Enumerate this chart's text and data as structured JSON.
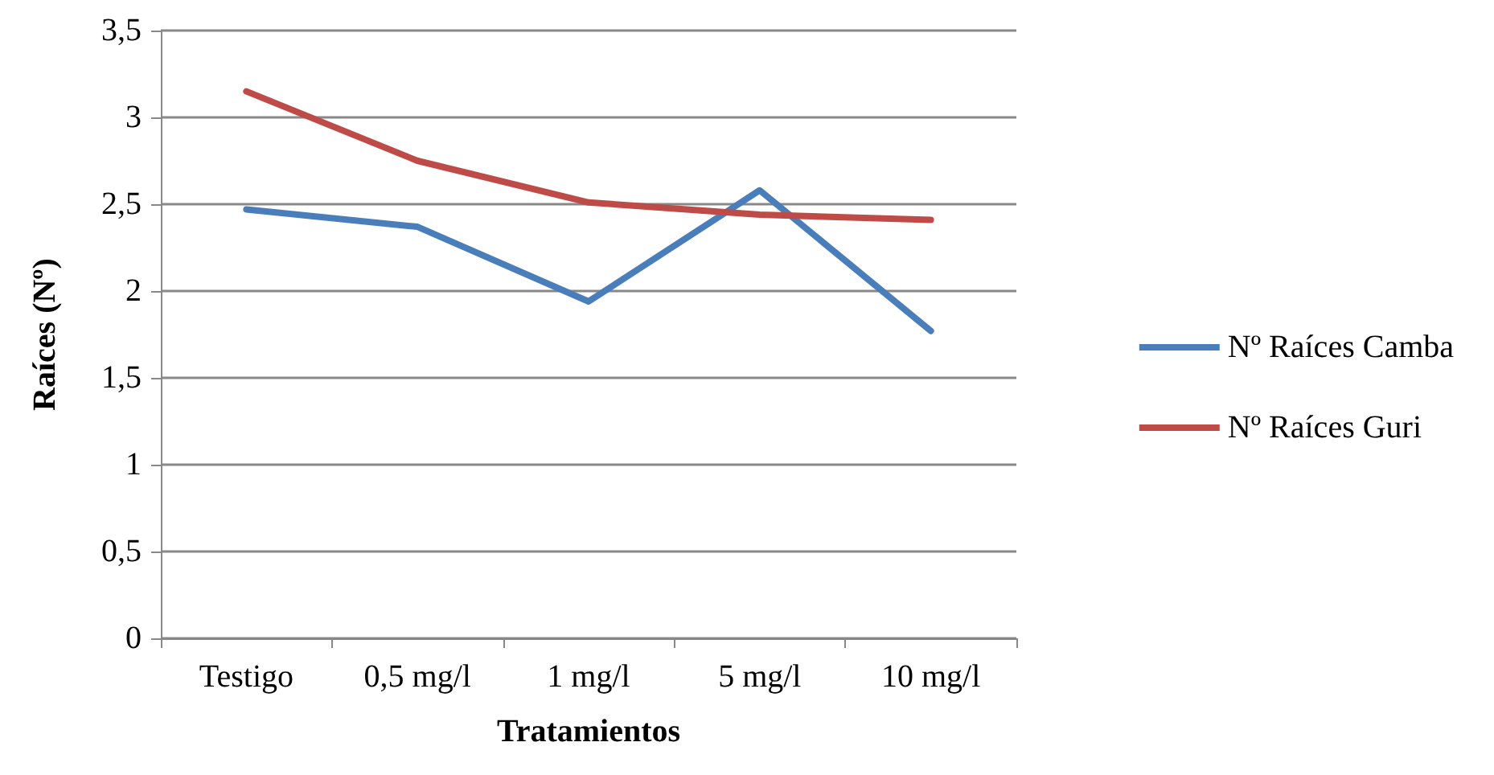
{
  "chart_data": {
    "type": "line",
    "xlabel": "Tratamientos",
    "ylabel": "Raíces (Nº)",
    "categories": [
      "Testigo",
      "0,5 mg/l",
      "1 mg/l",
      "5 mg/l",
      "10 mg/l"
    ],
    "series": [
      {
        "name": "Nº Raíces Camba",
        "color": "#4a7ebb",
        "values": [
          2.47,
          2.37,
          1.94,
          2.58,
          1.77
        ]
      },
      {
        "name": "Nº Raíces Guri",
        "color": "#be4b48",
        "values": [
          3.15,
          2.75,
          2.51,
          2.44,
          2.41
        ]
      }
    ],
    "ylim": [
      0,
      3.5
    ],
    "yticks": [
      {
        "value": 0,
        "label": "0"
      },
      {
        "value": 0.5,
        "label": "0,5"
      },
      {
        "value": 1,
        "label": "1"
      },
      {
        "value": 1.5,
        "label": "1,5"
      },
      {
        "value": 2,
        "label": "2"
      },
      {
        "value": 2.5,
        "label": "2,5"
      },
      {
        "value": 3,
        "label": "3"
      },
      {
        "value": 3.5,
        "label": "3,5"
      }
    ],
    "grid": "y",
    "legend": "right",
    "marker": "none",
    "line_style": "solid"
  }
}
